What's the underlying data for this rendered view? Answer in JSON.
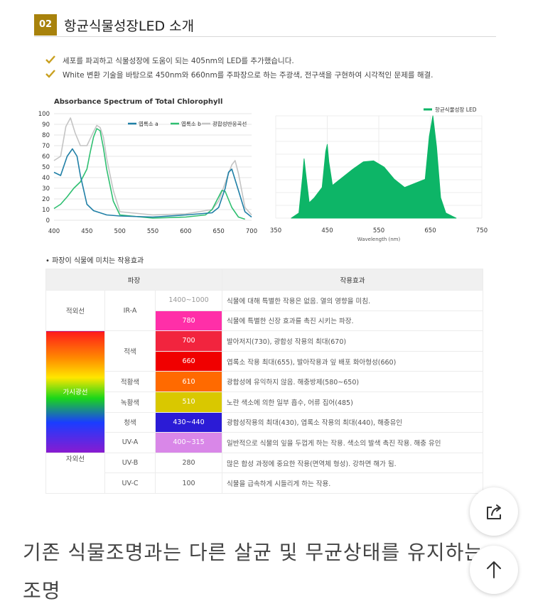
{
  "section": {
    "number": "02",
    "title": "항균식물성장LED 소개"
  },
  "bullets": [
    "세포를 파괴하고 식물성장에 도움이 되는 405nm의 LED를 추가했습니다.",
    "White 변환 기술을 바탕으로 450nm와 660nm를 주파장으로 하는 주광색, 전구색을 구현하여 시각적인 문제를 해결."
  ],
  "chart_data": [
    {
      "type": "line",
      "title": "Absorbance Spectrum of Total Chlorophyll",
      "xlabel": "",
      "ylabel": "",
      "xlim": [
        400,
        700
      ],
      "ylim": [
        0,
        100
      ],
      "xticks": [
        400,
        450,
        500,
        550,
        600,
        650,
        700
      ],
      "yticks": [
        0,
        10,
        20,
        30,
        40,
        50,
        60,
        70,
        80,
        90,
        100
      ],
      "legend_position": "top",
      "series": [
        {
          "name": "엽록소 a",
          "color": "#1f7fa6",
          "x": [
            400,
            410,
            420,
            428,
            435,
            440,
            450,
            460,
            470,
            480,
            500,
            550,
            600,
            640,
            650,
            660,
            665,
            670,
            680,
            690,
            700
          ],
          "y": [
            45,
            42,
            60,
            67,
            60,
            42,
            15,
            9,
            7,
            5,
            4,
            3,
            5,
            7,
            12,
            30,
            45,
            48,
            28,
            8,
            3
          ]
        },
        {
          "name": "엽록소 b",
          "color": "#2fbf71",
          "x": [
            400,
            410,
            420,
            430,
            440,
            450,
            455,
            460,
            465,
            470,
            475,
            480,
            490,
            500,
            550,
            600,
            630,
            640,
            650,
            655,
            660,
            670,
            680,
            690
          ],
          "y": [
            11,
            15,
            22,
            30,
            36,
            48,
            64,
            78,
            86,
            84,
            68,
            48,
            18,
            5,
            2,
            3,
            5,
            10,
            22,
            28,
            27,
            12,
            3,
            1
          ]
        },
        {
          "name": "광합성반응곡선",
          "color": "#c4c4c4",
          "x": [
            400,
            410,
            418,
            425,
            432,
            440,
            450,
            460,
            465,
            470,
            475,
            480,
            490,
            500,
            550,
            600,
            640,
            650,
            660,
            670,
            675,
            680,
            690,
            700
          ],
          "y": [
            56,
            60,
            88,
            96,
            82,
            70,
            70,
            83,
            89,
            87,
            78,
            58,
            28,
            8,
            5,
            6,
            10,
            18,
            35,
            52,
            56,
            44,
            12,
            5
          ]
        }
      ]
    },
    {
      "type": "area",
      "title": "",
      "xlabel": "Wavelength (nm)",
      "ylabel": "",
      "xlim": [
        350,
        750
      ],
      "xticks": [
        350,
        450,
        550,
        650,
        750
      ],
      "legend_position": "top-right",
      "series": [
        {
          "name": "항균식물성장 LED",
          "color": "#0db567",
          "x": [
            380,
            395,
            402,
            405,
            408,
            415,
            425,
            440,
            447,
            450,
            453,
            460,
            480,
            500,
            520,
            540,
            560,
            580,
            600,
            640,
            648,
            655,
            662,
            670,
            680,
            700
          ],
          "y": [
            0,
            5,
            40,
            58,
            45,
            15,
            20,
            30,
            65,
            72,
            55,
            32,
            40,
            48,
            55,
            56,
            50,
            38,
            30,
            38,
            80,
            100,
            70,
            20,
            5,
            0
          ]
        }
      ]
    }
  ],
  "effect_table": {
    "caption": "• 파장이 식물에 미치는 작용효과",
    "headers": {
      "wavelength": "파장",
      "effect": "작용효과"
    },
    "groups": {
      "infrared": "적외선",
      "visible": "가시광선",
      "ultraviolet": "자외선"
    },
    "rows": [
      {
        "band": "IR-A",
        "range": "1400~1000",
        "color": "",
        "effect": "식물에 대해 특별한 작용은 없음. 열의 영향을 미침."
      },
      {
        "band": "",
        "range": "780",
        "color": "#ff2fa8",
        "effect": "식물에 특별한 신장 효과를 촉진 시키는 파장."
      },
      {
        "band": "적색",
        "range": "700",
        "color": "#f2243e",
        "effect": "발아저지(730), 광합성 작용의 최대(670)"
      },
      {
        "band": "",
        "range": "660",
        "color": "#f00000",
        "effect": "엽록소 작용 최대(655), 발아작용과 잎 배포 화아형성(660)"
      },
      {
        "band": "적황색",
        "range": "610",
        "color": "#ff6a00",
        "effect": "광합성에 유익하지 않음. 해충방제(580~650)"
      },
      {
        "band": "녹황색",
        "range": "510",
        "color": "#d9c800",
        "effect": "노란 색소에 의한 일부 흡수, 어류 집어(485)"
      },
      {
        "band": "청색",
        "range": "430~440",
        "color": "#2b1bd6",
        "effect": "광합성작용의 최대(430), 엽록소 작용의 최대(440), 해충유인"
      },
      {
        "band": "UV-A",
        "range": "400~315",
        "color": "#d987e8",
        "effect": "일반적으로 식물의 잎을 두껍게 하는 작용. 색소의 발색 촉진 작용. 해충 유인"
      },
      {
        "band": "UV-B",
        "range": "280",
        "color": "",
        "effect": "많은 합성 과정에 중요한 작용(면역체 형성). 강하면 해가 됨."
      },
      {
        "band": "UV-C",
        "range": "100",
        "color": "",
        "effect": "식물을 급속하게 시들리게 하는 작용."
      }
    ]
  },
  "heading_text": {
    "line1": "기존 식물조명과는 다른 살균 및 무균상태를 유지하는",
    "line2": "조명"
  },
  "icons": {
    "share": "share-icon",
    "top": "arrow-up-icon",
    "check": "check-icon"
  },
  "colors": {
    "accent": "#a8820c",
    "led_green": "#0db567"
  }
}
